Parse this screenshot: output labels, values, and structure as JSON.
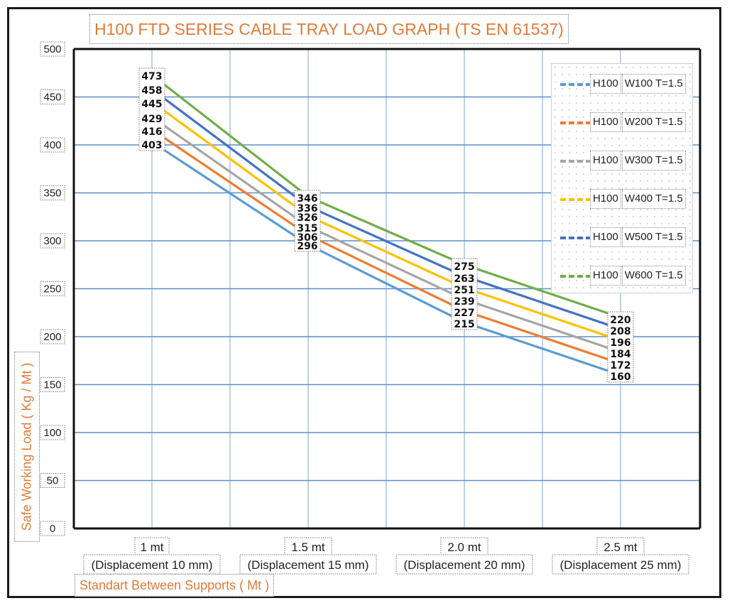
{
  "chart_data": {
    "type": "line",
    "title": "H100 FTD SERIES CABLE TRAY LOAD GRAPH (TS EN 61537)",
    "xlabel": "Standart Between Supports ( Mt )",
    "ylabel": "Safe Working Load ( Kg / Mt )",
    "ylim": [
      0,
      500
    ],
    "yticks": [
      0,
      50,
      100,
      150,
      200,
      250,
      300,
      350,
      400,
      450,
      500
    ],
    "categories": [
      "1 mt",
      "1.5 mt",
      "2.0 mt",
      "2.5 mt"
    ],
    "category_sublabels": [
      "(Displacement 10 mm)",
      "(Displacement 15 mm)",
      "(Displacement 20 mm)",
      "(Displacement 25 mm)"
    ],
    "grid": true,
    "legend_position": "top-right",
    "series": [
      {
        "name": "H100 W100 T=1.5",
        "name_parts": [
          "H100",
          "W100 T=1.5"
        ],
        "color": "#5b9bd5",
        "values": [
          403,
          296,
          215,
          160
        ]
      },
      {
        "name": "H100 W200 T=1.5",
        "name_parts": [
          "H100",
          "W200 T=1.5"
        ],
        "color": "#ed7d31",
        "values": [
          416,
          306,
          227,
          172
        ]
      },
      {
        "name": "H100 W300 T=1.5",
        "name_parts": [
          "H100",
          "W300 T=1.5"
        ],
        "color": "#a5a5a5",
        "values": [
          429,
          315,
          239,
          184
        ]
      },
      {
        "name": "H100 W400 T=1.5",
        "name_parts": [
          "H100",
          "W400 T=1.5"
        ],
        "color": "#ffc000",
        "values": [
          445,
          326,
          251,
          196
        ]
      },
      {
        "name": "H100 W500 T=1.5",
        "name_parts": [
          "H100",
          "W500 T=1.5"
        ],
        "color": "#4472c4",
        "values": [
          458,
          336,
          263,
          208
        ]
      },
      {
        "name": "H100 W600 T=1.5",
        "name_parts": [
          "H100",
          "W600 T=1.5"
        ],
        "color": "#70ad47",
        "values": [
          473,
          346,
          275,
          220
        ]
      }
    ]
  }
}
